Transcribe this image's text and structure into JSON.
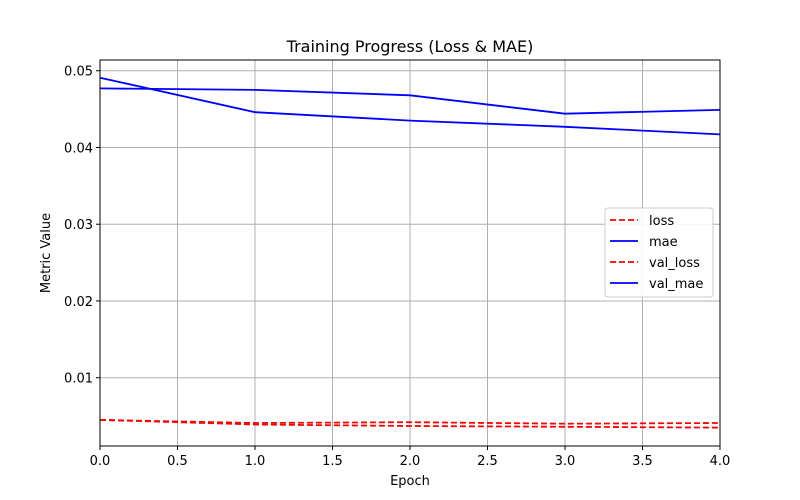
{
  "chart_data": {
    "type": "line",
    "title": "Training Progress (Loss & MAE)",
    "xlabel": "Epoch",
    "ylabel": "Metric Value",
    "xlim": [
      0,
      4
    ],
    "ylim": [
      0.0011,
      0.0514
    ],
    "xticks": [
      "0.0",
      "0.5",
      "1.0",
      "1.5",
      "2.0",
      "2.5",
      "3.0",
      "3.5",
      "4.0"
    ],
    "yticks": [
      "0.01",
      "0.02",
      "0.03",
      "0.04",
      "0.05"
    ],
    "grid": true,
    "legend_position": "center-right",
    "series": [
      {
        "name": "loss",
        "color": "#ff0000",
        "style": "dashed",
        "x": [
          0,
          1,
          2,
          3,
          4
        ],
        "y": [
          0.0045,
          0.0041,
          0.0042,
          0.004,
          0.0041
        ]
      },
      {
        "name": "mae",
        "color": "#0000ff",
        "style": "solid",
        "x": [
          0,
          1,
          2,
          3,
          4
        ],
        "y": [
          0.0491,
          0.0446,
          0.0435,
          0.0427,
          0.0417
        ]
      },
      {
        "name": "val_loss",
        "color": "#ff0000",
        "style": "dashed",
        "x": [
          0,
          1,
          2,
          3,
          4
        ],
        "y": [
          0.0045,
          0.0039,
          0.0037,
          0.0036,
          0.0035
        ]
      },
      {
        "name": "val_mae",
        "color": "#0000ff",
        "style": "solid",
        "x": [
          0,
          1,
          2,
          3,
          4
        ],
        "y": [
          0.0477,
          0.0475,
          0.0468,
          0.0444,
          0.0449
        ]
      }
    ]
  }
}
